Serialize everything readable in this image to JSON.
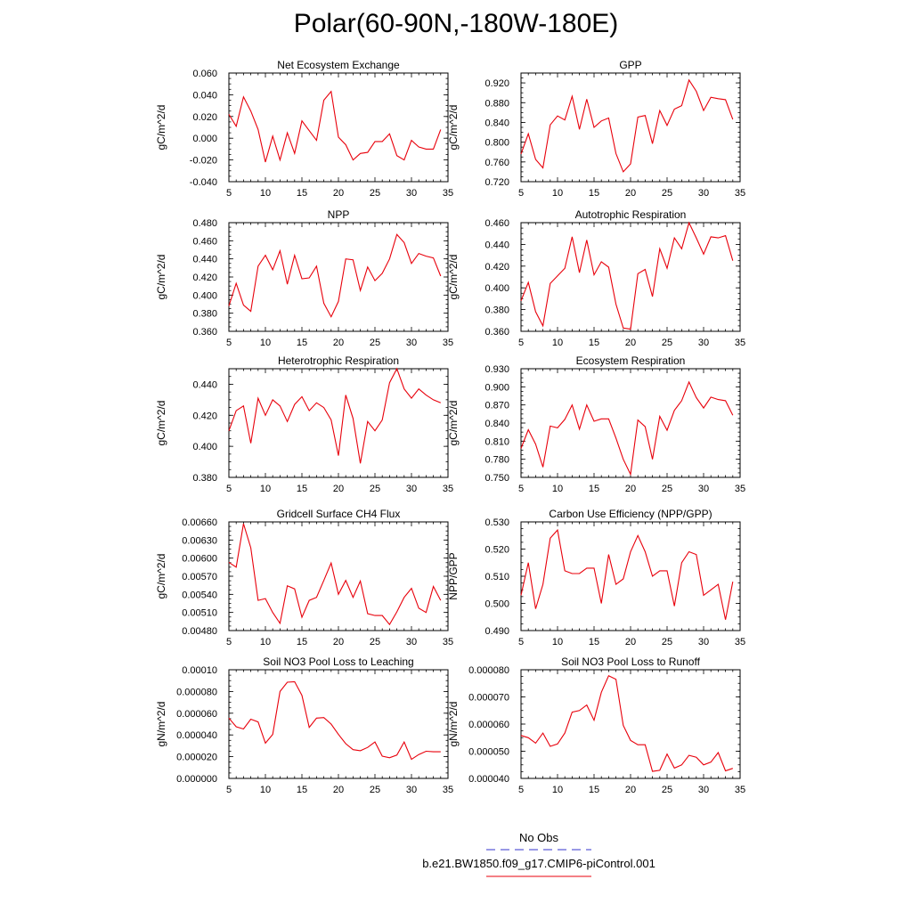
{
  "title": "Polar(60-90N,-180W-180E)",
  "colors": {
    "model": "#e8000b",
    "obs": "#3333cc"
  },
  "legend": {
    "obs_label": "No Obs",
    "model_label": "b.e21.BW1850.f09_g17.CMIP6-piControl.001"
  },
  "chart_data": [
    {
      "type": "line",
      "title": "Net Ecosystem Exchange",
      "ylabel": "gC/m^2/d",
      "xlim": [
        5,
        35
      ],
      "ylim": [
        -0.04,
        0.06
      ],
      "x_ticks": [
        "5",
        "10",
        "15",
        "20",
        "25",
        "30",
        "35"
      ],
      "y_ticks": [
        "-0.040",
        "-0.020",
        "0.000",
        "0.020",
        "0.040",
        "0.060"
      ],
      "x": [
        5,
        6,
        7,
        8,
        9,
        10,
        11,
        12,
        13,
        14,
        15,
        16,
        17,
        18,
        19,
        20,
        21,
        22,
        23,
        24,
        25,
        26,
        27,
        28,
        29,
        30,
        31,
        32,
        33,
        34
      ],
      "series": [
        {
          "values": [
            0.022,
            0.011,
            0.038,
            0.025,
            0.008,
            -0.022,
            0.002,
            -0.02,
            0.005,
            -0.014,
            0.016,
            0.007,
            -0.002,
            0.035,
            0.043,
            0.001,
            -0.006,
            -0.02,
            -0.014,
            -0.013,
            -0.003,
            -0.003,
            0.004,
            -0.016,
            -0.02,
            -0.002,
            -0.008,
            -0.01,
            -0.01,
            0.008
          ]
        }
      ]
    },
    {
      "type": "line",
      "title": "GPP",
      "ylabel": "gC/m^2/d",
      "xlim": [
        5,
        35
      ],
      "ylim": [
        0.72,
        0.94
      ],
      "x_ticks": [
        "5",
        "10",
        "15",
        "20",
        "25",
        "30",
        "35"
      ],
      "y_ticks": [
        "0.720",
        "0.760",
        "0.800",
        "0.840",
        "0.880",
        "0.920"
      ],
      "x": [
        5,
        6,
        7,
        8,
        9,
        10,
        11,
        12,
        13,
        14,
        15,
        16,
        17,
        18,
        19,
        20,
        21,
        22,
        23,
        24,
        25,
        26,
        27,
        28,
        29,
        30,
        31,
        32,
        33,
        34
      ],
      "series": [
        {
          "values": [
            0.776,
            0.817,
            0.765,
            0.748,
            0.835,
            0.853,
            0.845,
            0.893,
            0.826,
            0.887,
            0.83,
            0.843,
            0.849,
            0.777,
            0.74,
            0.756,
            0.851,
            0.854,
            0.797,
            0.864,
            0.834,
            0.867,
            0.874,
            0.926,
            0.903,
            0.864,
            0.891,
            0.888,
            0.886,
            0.846
          ]
        }
      ]
    },
    {
      "type": "line",
      "title": "NPP",
      "ylabel": "gC/m^2/d",
      "xlim": [
        5,
        35
      ],
      "ylim": [
        0.36,
        0.48
      ],
      "x_ticks": [
        "5",
        "10",
        "15",
        "20",
        "25",
        "30",
        "35"
      ],
      "y_ticks": [
        "0.360",
        "0.380",
        "0.400",
        "0.420",
        "0.440",
        "0.460",
        "0.480"
      ],
      "x": [
        5,
        6,
        7,
        8,
        9,
        10,
        11,
        12,
        13,
        14,
        15,
        16,
        17,
        18,
        19,
        20,
        21,
        22,
        23,
        24,
        25,
        26,
        27,
        28,
        29,
        30,
        31,
        32,
        33,
        34
      ],
      "series": [
        {
          "values": [
            0.388,
            0.413,
            0.389,
            0.382,
            0.432,
            0.444,
            0.428,
            0.449,
            0.412,
            0.444,
            0.418,
            0.419,
            0.432,
            0.391,
            0.376,
            0.393,
            0.44,
            0.439,
            0.405,
            0.431,
            0.416,
            0.424,
            0.44,
            0.467,
            0.458,
            0.435,
            0.446,
            0.443,
            0.441,
            0.421
          ]
        }
      ]
    },
    {
      "type": "line",
      "title": "Autotrophic Respiration",
      "ylabel": "gC/m^2/d",
      "xlim": [
        5,
        35
      ],
      "ylim": [
        0.36,
        0.46
      ],
      "x_ticks": [
        "5",
        "10",
        "15",
        "20",
        "25",
        "30",
        "35"
      ],
      "y_ticks": [
        "0.360",
        "0.380",
        "0.400",
        "0.420",
        "0.440",
        "0.460"
      ],
      "x": [
        5,
        6,
        7,
        8,
        9,
        10,
        11,
        12,
        13,
        14,
        15,
        16,
        17,
        18,
        19,
        20,
        21,
        22,
        23,
        24,
        25,
        26,
        27,
        28,
        29,
        30,
        31,
        32,
        33,
        34
      ],
      "series": [
        {
          "values": [
            0.388,
            0.405,
            0.378,
            0.365,
            0.404,
            0.411,
            0.418,
            0.447,
            0.414,
            0.444,
            0.412,
            0.424,
            0.419,
            0.385,
            0.363,
            0.362,
            0.413,
            0.417,
            0.392,
            0.436,
            0.418,
            0.446,
            0.436,
            0.46,
            0.446,
            0.431,
            0.447,
            0.446,
            0.448,
            0.425
          ]
        }
      ]
    },
    {
      "type": "line",
      "title": "Heterotrophic Respiration",
      "ylabel": "gC/m^2/d",
      "xlim": [
        5,
        35
      ],
      "ylim": [
        0.38,
        0.45
      ],
      "x_ticks": [
        "5",
        "10",
        "15",
        "20",
        "25",
        "30",
        "35"
      ],
      "y_ticks": [
        "0.380",
        "0.400",
        "0.420",
        "0.440"
      ],
      "x": [
        5,
        6,
        7,
        8,
        9,
        10,
        11,
        12,
        13,
        14,
        15,
        16,
        17,
        18,
        19,
        20,
        21,
        22,
        23,
        24,
        25,
        26,
        27,
        28,
        29,
        30,
        31,
        32,
        33,
        34
      ],
      "series": [
        {
          "values": [
            0.41,
            0.423,
            0.426,
            0.402,
            0.431,
            0.42,
            0.43,
            0.426,
            0.416,
            0.427,
            0.432,
            0.423,
            0.428,
            0.425,
            0.417,
            0.394,
            0.433,
            0.418,
            0.389,
            0.416,
            0.41,
            0.417,
            0.441,
            0.45,
            0.437,
            0.431,
            0.437,
            0.433,
            0.43,
            0.428
          ]
        }
      ]
    },
    {
      "type": "line",
      "title": "Ecosystem Respiration",
      "ylabel": "gC/m^2/d",
      "xlim": [
        5,
        35
      ],
      "ylim": [
        0.75,
        0.93
      ],
      "x_ticks": [
        "5",
        "10",
        "15",
        "20",
        "25",
        "30",
        "35"
      ],
      "y_ticks": [
        "0.750",
        "0.780",
        "0.810",
        "0.840",
        "0.870",
        "0.900",
        "0.930"
      ],
      "x": [
        5,
        6,
        7,
        8,
        9,
        10,
        11,
        12,
        13,
        14,
        15,
        16,
        17,
        18,
        19,
        20,
        21,
        22,
        23,
        24,
        25,
        26,
        27,
        28,
        29,
        30,
        31,
        32,
        33,
        34
      ],
      "series": [
        {
          "values": [
            0.798,
            0.829,
            0.805,
            0.767,
            0.835,
            0.832,
            0.846,
            0.87,
            0.83,
            0.87,
            0.843,
            0.847,
            0.847,
            0.815,
            0.78,
            0.755,
            0.845,
            0.834,
            0.78,
            0.851,
            0.828,
            0.861,
            0.877,
            0.908,
            0.882,
            0.865,
            0.883,
            0.879,
            0.877,
            0.853
          ]
        }
      ]
    },
    {
      "type": "line",
      "title": "Gridcell Surface CH4 Flux",
      "ylabel": "gC/m^2/d",
      "xlim": [
        5,
        35
      ],
      "ylim": [
        0.0048,
        0.0066
      ],
      "x_ticks": [
        "5",
        "10",
        "15",
        "20",
        "25",
        "30",
        "35"
      ],
      "y_ticks": [
        "0.00480",
        "0.00510",
        "0.00540",
        "0.00570",
        "0.00600",
        "0.00630",
        "0.00660"
      ],
      "x": [
        5,
        6,
        7,
        8,
        9,
        10,
        11,
        12,
        13,
        14,
        15,
        16,
        17,
        18,
        19,
        20,
        21,
        22,
        23,
        24,
        25,
        26,
        27,
        28,
        29,
        30,
        31,
        32,
        33,
        34
      ],
      "series": [
        {
          "values": [
            0.00593,
            0.00585,
            0.00657,
            0.00617,
            0.0053,
            0.00533,
            0.0051,
            0.00492,
            0.00554,
            0.00549,
            0.00502,
            0.0053,
            0.00535,
            0.00563,
            0.00592,
            0.0054,
            0.00563,
            0.00535,
            0.00562,
            0.00508,
            0.00505,
            0.00505,
            0.0049,
            0.00511,
            0.00535,
            0.0055,
            0.00517,
            0.0051,
            0.00553,
            0.0053
          ]
        }
      ]
    },
    {
      "type": "line",
      "title": "Carbon Use Efficiency (NPP/GPP)",
      "ylabel": "NPP/GPP",
      "xlim": [
        5,
        35
      ],
      "ylim": [
        0.49,
        0.53
      ],
      "x_ticks": [
        "5",
        "10",
        "15",
        "20",
        "25",
        "30",
        "35"
      ],
      "y_ticks": [
        "0.490",
        "0.500",
        "0.510",
        "0.520",
        "0.530"
      ],
      "x": [
        5,
        6,
        7,
        8,
        9,
        10,
        11,
        12,
        13,
        14,
        15,
        16,
        17,
        18,
        19,
        20,
        21,
        22,
        23,
        24,
        25,
        26,
        27,
        28,
        29,
        30,
        31,
        32,
        33,
        34
      ],
      "series": [
        {
          "values": [
            0.503,
            0.515,
            0.498,
            0.507,
            0.524,
            0.527,
            0.512,
            0.511,
            0.511,
            0.513,
            0.513,
            0.5,
            0.518,
            0.507,
            0.509,
            0.519,
            0.525,
            0.519,
            0.51,
            0.512,
            0.512,
            0.499,
            0.515,
            0.519,
            0.518,
            0.503,
            0.505,
            0.507,
            0.494,
            0.508
          ]
        }
      ]
    },
    {
      "type": "line",
      "title": "Soil NO3 Pool Loss to Leaching",
      "ylabel": "gN/m^2/d",
      "xlim": [
        5,
        35
      ],
      "ylim": [
        0.0,
        0.0001
      ],
      "x_ticks": [
        "5",
        "10",
        "15",
        "20",
        "25",
        "30",
        "35"
      ],
      "y_ticks": [
        "0.000000",
        "0.000020",
        "0.000040",
        "0.000060",
        "0.000080",
        "0.00010"
      ],
      "x": [
        5,
        6,
        7,
        8,
        9,
        10,
        11,
        12,
        13,
        14,
        15,
        16,
        17,
        18,
        19,
        20,
        21,
        22,
        23,
        24,
        25,
        26,
        27,
        28,
        29,
        30,
        31,
        32,
        33,
        34
      ],
      "series": [
        {
          "values": [
            5.55e-05,
            4.75e-05,
            4.55e-05,
            5.45e-05,
            5.2e-05,
            3.25e-05,
            4.05e-05,
            8e-05,
            8.85e-05,
            8.9e-05,
            7.65e-05,
            4.7e-05,
            5.55e-05,
            5.6e-05,
            5e-05,
            4.05e-05,
            3.2e-05,
            2.65e-05,
            2.55e-05,
            2.85e-05,
            3.35e-05,
            2.05e-05,
            1.9e-05,
            2.15e-05,
            3.35e-05,
            1.75e-05,
            2.2e-05,
            2.5e-05,
            2.45e-05,
            2.45e-05
          ]
        }
      ]
    },
    {
      "type": "line",
      "title": "Soil NO3 Pool Loss to Runoff",
      "ylabel": "gN/m^2/d",
      "xlim": [
        5,
        35
      ],
      "ylim": [
        4e-05,
        8e-05
      ],
      "x_ticks": [
        "5",
        "10",
        "15",
        "20",
        "25",
        "30",
        "35"
      ],
      "y_ticks": [
        "0.000040",
        "0.000050",
        "0.000060",
        "0.000070",
        "0.000080"
      ],
      "x": [
        5,
        6,
        7,
        8,
        9,
        10,
        11,
        12,
        13,
        14,
        15,
        16,
        17,
        18,
        19,
        20,
        21,
        22,
        23,
        24,
        25,
        26,
        27,
        28,
        29,
        30,
        31,
        32,
        33,
        34
      ],
      "series": [
        {
          "values": [
            5.58e-05,
            5.5e-05,
            5.3e-05,
            5.67e-05,
            5.18e-05,
            5.27e-05,
            5.67e-05,
            6.44e-05,
            6.5e-05,
            6.7e-05,
            6.14e-05,
            7.17e-05,
            7.78e-05,
            7.65e-05,
            5.95e-05,
            5.4e-05,
            5.24e-05,
            5.24e-05,
            4.26e-05,
            4.3e-05,
            4.9e-05,
            4.38e-05,
            4.5e-05,
            4.85e-05,
            4.78e-05,
            4.5e-05,
            4.6e-05,
            4.95e-05,
            4.28e-05,
            4.37e-05
          ]
        }
      ]
    }
  ]
}
